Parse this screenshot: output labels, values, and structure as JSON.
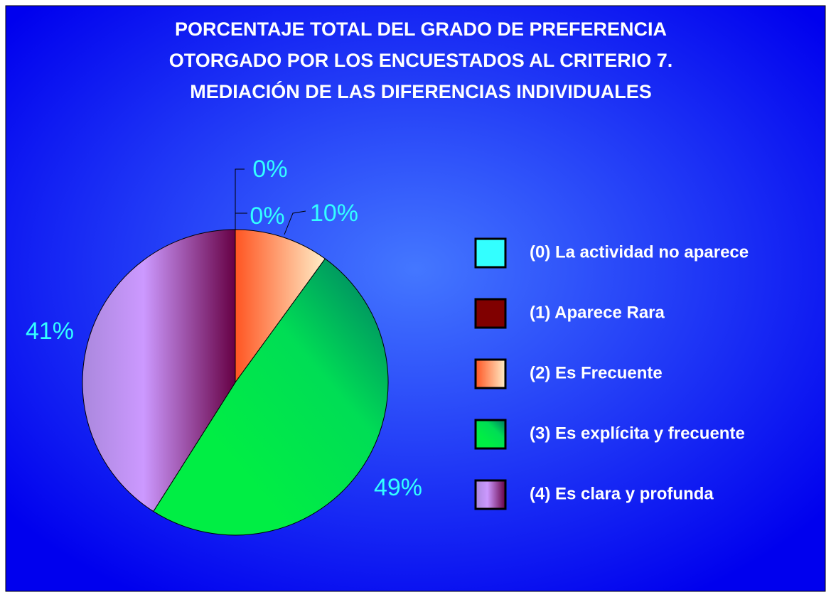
{
  "chart_data": {
    "type": "pie",
    "title": [
      "PORCENTAJE TOTAL DEL GRADO DE PREFERENCIA",
      "OTORGADO POR LOS ENCUESTADOS AL CRITERIO 7.",
      "MEDIACIÓN DE LAS DIFERENCIAS INDIVIDUALES"
    ],
    "categories": [
      "(0) La actividad no aparece",
      "(1) Aparece Rara",
      "(2) Es Frecuente",
      "(3) Es explícita y frecuente",
      "(4) Es clara y profunda"
    ],
    "values": [
      0,
      0,
      10,
      49,
      41
    ],
    "value_labels": [
      "0%",
      "0%",
      "10%",
      "49%",
      "41%"
    ],
    "colors": [
      "#33ffff",
      "#800000",
      "#ff9955",
      "#00dd55",
      "#bb88ee"
    ],
    "legend": "right"
  }
}
